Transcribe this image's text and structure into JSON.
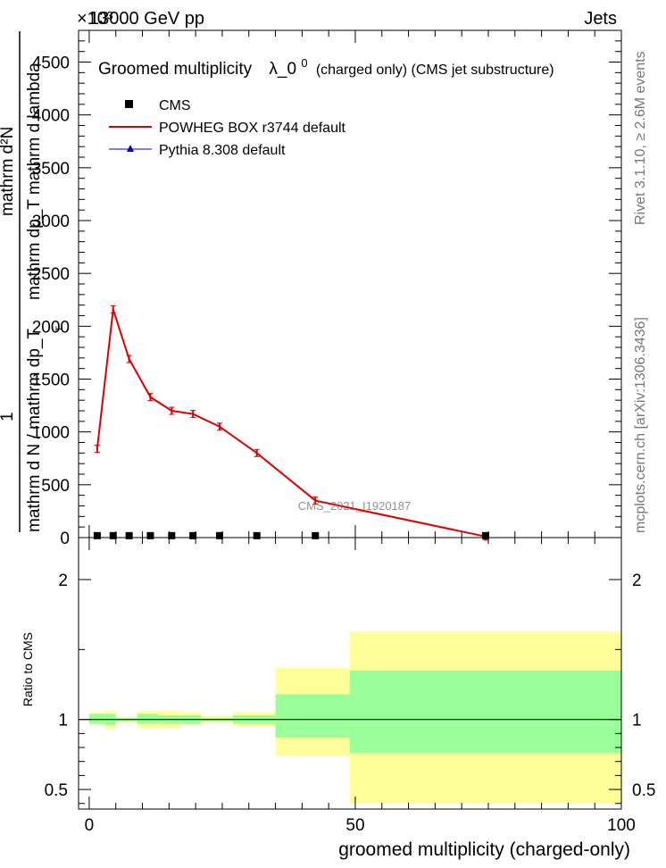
{
  "header": {
    "energy_label": "13000 GeV pp",
    "process_label": "Jets",
    "exponent_label": "×10³"
  },
  "side_labels": {
    "rivet": "Rivet 3.1.10, ≥ 2.6M events",
    "mcplots": "mcplots.cern.ch [arXiv:1306.3436]"
  },
  "watermark": "CMS_2021_I1920187",
  "colors": {
    "powheg": "#dd0000",
    "pythia": "#0000cc",
    "cms": "#000000",
    "band_outer": "#ffff99",
    "band_inner": "#99ff99"
  },
  "chart_data": [
    {
      "type": "line",
      "title": "Groomed multiplicity",
      "title_symbol": "λ_0",
      "title_sup": "0",
      "title_suffix": "(charged only) (CMS jet substructure)",
      "ylabel_num": "1",
      "ylabel_top": "mathrm d²N",
      "ylabel_den": "mathrm dp_T mathrm d lambda",
      "ylabel_bottom": "mathrm d N / mathrm dp_T",
      "ylabel_sub": "T",
      "xlim": [
        -2,
        100
      ],
      "ylim": [
        0,
        4800
      ],
      "yticks": [
        0,
        500,
        1000,
        1500,
        2000,
        2500,
        3000,
        3500,
        4000,
        4500
      ],
      "ytick_labels": [
        "0",
        "500",
        "1000",
        "1500",
        "2000",
        "2500",
        "3000",
        "3500",
        "4000",
        "4500"
      ],
      "legend_position": "top-left",
      "series": [
        {
          "name": "CMS",
          "marker": "square",
          "x": [
            1.5,
            4.5,
            7.5,
            11.5,
            15.5,
            19.5,
            24.5,
            31.5,
            42.5,
            74.5
          ],
          "y": [
            10,
            10,
            10,
            10,
            10,
            10,
            10,
            10,
            10,
            10
          ]
        },
        {
          "name": "POWHEG BOX r3744 default",
          "marker": "line",
          "x": [
            1.5,
            4.5,
            7.5,
            11.5,
            15.5,
            19.5,
            24.5,
            31.5,
            42.5,
            74.5
          ],
          "y": [
            840,
            2160,
            1690,
            1330,
            1200,
            1170,
            1050,
            800,
            350,
            10
          ]
        },
        {
          "name": "Pythia 8.308 default",
          "marker": "triangle",
          "x": [],
          "y": []
        }
      ]
    },
    {
      "type": "area",
      "ylabel": "Ratio to CMS",
      "xlabel": "groomed multiplicity (charged-only)",
      "xlim": [
        -2,
        100
      ],
      "ylim": [
        0.36,
        2.3
      ],
      "xticks": [
        0,
        50,
        100
      ],
      "xtick_labels": [
        "0",
        "50",
        "100"
      ],
      "yticks": [
        0.5,
        1,
        2
      ],
      "ytick_labels": [
        "0.5",
        "1",
        "2"
      ],
      "reference_line": 1,
      "bins": [
        {
          "lo": 0,
          "hi": 3,
          "outer": [
            0.96,
            1.05
          ],
          "inner": [
            0.97,
            1.04
          ]
        },
        {
          "lo": 3,
          "hi": 5,
          "outer": [
            0.93,
            1.06
          ],
          "inner": [
            0.96,
            1.04
          ]
        },
        {
          "lo": 5,
          "hi": 9,
          "outer": [
            0.98,
            1.02
          ],
          "inner": [
            0.99,
            1.01
          ]
        },
        {
          "lo": 9,
          "hi": 13,
          "outer": [
            0.94,
            1.06
          ],
          "inner": [
            0.97,
            1.04
          ]
        },
        {
          "lo": 13,
          "hi": 17,
          "outer": [
            0.94,
            1.06
          ],
          "inner": [
            0.97,
            1.03
          ]
        },
        {
          "lo": 17,
          "hi": 21,
          "outer": [
            0.96,
            1.05
          ],
          "inner": [
            0.97,
            1.03
          ]
        },
        {
          "lo": 21,
          "hi": 27,
          "outer": [
            0.98,
            1.03
          ],
          "inner": [
            0.99,
            1.01
          ]
        },
        {
          "lo": 27,
          "hi": 35,
          "outer": [
            0.95,
            1.05
          ],
          "inner": [
            0.97,
            1.03
          ]
        },
        {
          "lo": 35,
          "hi": 49,
          "outer": [
            0.74,
            1.37
          ],
          "inner": [
            0.87,
            1.18
          ]
        },
        {
          "lo": 49,
          "hi": 100,
          "outer": [
            0.4,
            1.63
          ],
          "inner": [
            0.76,
            1.35
          ]
        }
      ]
    }
  ]
}
